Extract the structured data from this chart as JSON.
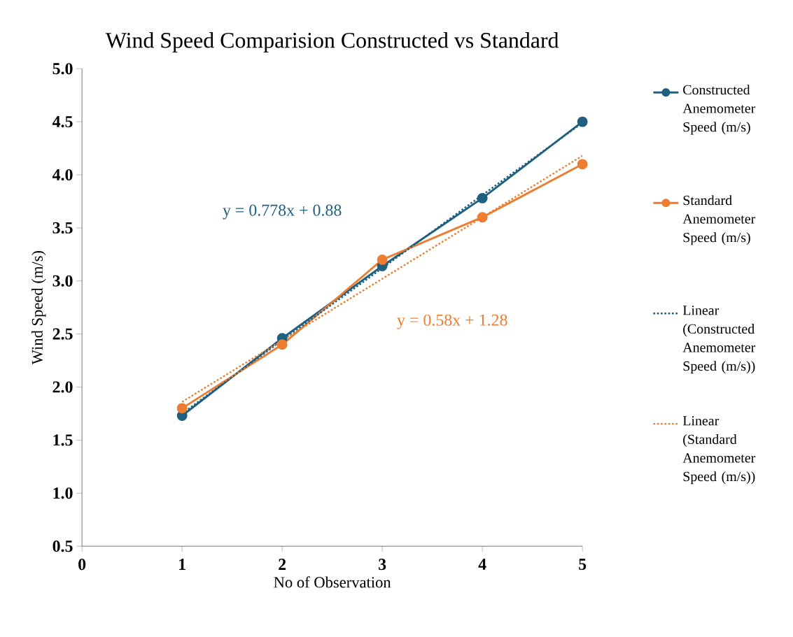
{
  "chart_data": {
    "type": "line",
    "title": "Wind Speed Comparision Constructed vs Standard",
    "xlabel": "No of Observation",
    "ylabel": "Wind Speed (m/s)",
    "x": [
      1,
      2,
      3,
      4,
      5
    ],
    "series": [
      {
        "name": "Constructed Anemometer Speed (m/s)",
        "color": "#1f5f7f",
        "values": [
          1.73,
          2.46,
          3.14,
          3.78,
          4.5
        ],
        "marker": "circle",
        "line_style": "solid"
      },
      {
        "name": "Standard Anemometer Speed (m/s)",
        "color": "#ed7d31",
        "values": [
          1.8,
          2.4,
          3.2,
          3.6,
          4.1
        ],
        "marker": "circle",
        "line_style": "solid"
      },
      {
        "name": "Linear (Constructed Anemometer Speed (m/s))",
        "color": "#1f5f7f",
        "values": [
          1.75,
          2.44,
          3.12,
          3.81,
          4.49
        ],
        "marker": "none",
        "line_style": "dotted"
      },
      {
        "name": "Linear (Standard Anemometer Speed (m/s))",
        "color": "#ed7d31",
        "values": [
          1.86,
          2.44,
          3.02,
          3.6,
          4.18
        ],
        "marker": "none",
        "line_style": "dotted"
      }
    ],
    "annotations": [
      "y = 0.778x + 0.88",
      "y = 0.58x + 1.28"
    ],
    "xlim": [
      0,
      5
    ],
    "xticks": [
      0,
      1,
      2,
      3,
      4,
      5
    ],
    "ylim": [
      0.5,
      5.0
    ],
    "yticks": [
      {
        "value": 0.5,
        "label": "0.5"
      },
      {
        "value": 1.0,
        "label": "1.0"
      },
      {
        "value": 1.5,
        "label": "1.5"
      },
      {
        "value": 2.0,
        "label": "2.0"
      },
      {
        "value": 2.5,
        "label": "2.5"
      },
      {
        "value": 3.0,
        "label": "3.0"
      },
      {
        "value": 3.5,
        "label": "3.5"
      },
      {
        "value": 4.0,
        "label": "4.0"
      },
      {
        "value": 4.5,
        "label": "4.5"
      },
      {
        "value": 5.0,
        "label": "5.0"
      }
    ],
    "grid": false,
    "legend": "right"
  }
}
